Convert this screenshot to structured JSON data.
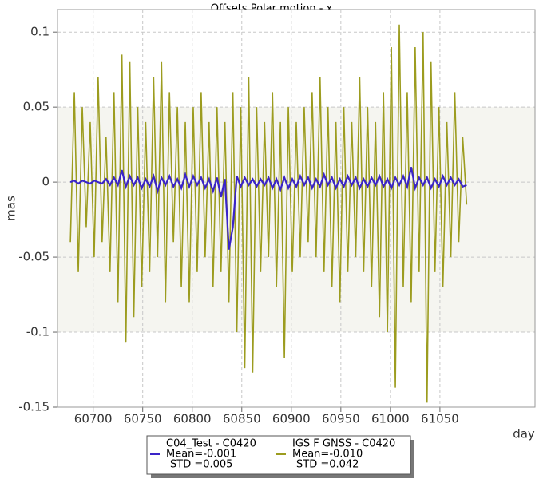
{
  "chart_data": {
    "type": "line",
    "title": "Offsets Polar motion - x",
    "ylabel": "mas",
    "xlabel": "day",
    "xlim": [
      60664,
      61146
    ],
    "xticks": [
      60700,
      60750,
      60800,
      60850,
      60900,
      60950,
      61000,
      61050
    ],
    "ylim": [
      -0.15,
      0.115
    ],
    "yticks": [
      0.1,
      0.05,
      0,
      -0.05,
      -0.1,
      -0.15
    ],
    "band": [
      -0.1,
      0.05
    ],
    "grid": true,
    "x": [
      60677,
      60681,
      60685,
      60689,
      60693,
      60697,
      60701,
      60705,
      60709,
      60713,
      60717,
      60721,
      60725,
      60729,
      60733,
      60737,
      60741,
      60745,
      60749,
      60753,
      60757,
      60761,
      60765,
      60769,
      60773,
      60777,
      60781,
      60785,
      60789,
      60793,
      60797,
      60801,
      60805,
      60809,
      60813,
      60817,
      60821,
      60825,
      60829,
      60833,
      60837,
      60841,
      60845,
      60849,
      60853,
      60857,
      60861,
      60865,
      60869,
      60873,
      60877,
      60881,
      60885,
      60889,
      60893,
      60897,
      60901,
      60905,
      60909,
      60913,
      60917,
      60921,
      60925,
      60929,
      60933,
      60937,
      60941,
      60945,
      60949,
      60953,
      60957,
      60961,
      60965,
      60969,
      60973,
      60977,
      60981,
      60985,
      60989,
      60993,
      60997,
      61001,
      61005,
      61009,
      61013,
      61017,
      61021,
      61025,
      61029,
      61033,
      61037,
      61041,
      61045,
      61049,
      61053,
      61057,
      61061,
      61065,
      61069,
      61073,
      61077
    ],
    "series": [
      {
        "name": "C04_Test - C0420",
        "mean_label": "Mean=-0.001",
        "std_label": "STD =0.005",
        "color": "#3a24c8",
        "values": [
          0,
          0.001,
          -0.001,
          0.001,
          0,
          -0.001,
          0.001,
          0,
          -0.001,
          0.002,
          -0.002,
          0.003,
          -0.002,
          0.008,
          -0.003,
          0.004,
          -0.002,
          0.003,
          -0.004,
          0.002,
          -0.003,
          0.004,
          -0.006,
          0.003,
          -0.002,
          0.004,
          -0.003,
          0.002,
          -0.004,
          0.005,
          -0.003,
          0.004,
          -0.002,
          0.003,
          -0.004,
          0.002,
          -0.006,
          0.003,
          -0.01,
          0.002,
          -0.045,
          -0.03,
          0.004,
          -0.003,
          0.003,
          -0.002,
          0.002,
          -0.003,
          0.002,
          -0.002,
          0.003,
          -0.004,
          0.002,
          -0.005,
          0.003,
          -0.004,
          0.002,
          -0.003,
          0.004,
          -0.002,
          0.003,
          -0.004,
          0.002,
          -0.003,
          0.005,
          -0.002,
          0.003,
          -0.004,
          0.002,
          -0.003,
          0.004,
          -0.002,
          0.003,
          -0.004,
          0.002,
          -0.003,
          0.003,
          -0.002,
          0.004,
          -0.003,
          0.002,
          -0.004,
          0.003,
          -0.002,
          0.004,
          -0.003,
          0.01,
          -0.004,
          0.003,
          -0.002,
          0.003,
          -0.004,
          0.002,
          -0.003,
          0.004,
          -0.002,
          0.003,
          -0.002,
          0.002,
          -0.003,
          -0.002
        ]
      },
      {
        "name": "IGS F GNSS - C0420",
        "mean_label": "Mean=-0.010",
        "std_label": "STD =0.042",
        "color": "#9c9c1f",
        "values": [
          -0.04,
          0.06,
          -0.06,
          0.05,
          -0.03,
          0.04,
          -0.05,
          0.07,
          -0.04,
          0.03,
          -0.06,
          0.06,
          -0.08,
          0.085,
          -0.107,
          0.08,
          -0.09,
          0.05,
          -0.07,
          0.04,
          -0.06,
          0.07,
          -0.05,
          0.08,
          -0.08,
          0.06,
          -0.04,
          0.05,
          -0.07,
          0.04,
          -0.08,
          0.05,
          -0.06,
          0.06,
          -0.05,
          0.04,
          -0.07,
          0.05,
          -0.06,
          0.04,
          -0.08,
          0.06,
          -0.1,
          0.05,
          -0.124,
          0.07,
          -0.127,
          0.05,
          -0.06,
          0.04,
          -0.05,
          0.06,
          -0.07,
          0.04,
          -0.117,
          0.05,
          -0.06,
          0.04,
          -0.05,
          0.05,
          -0.04,
          0.06,
          -0.05,
          0.07,
          -0.06,
          0.05,
          -0.07,
          0.04,
          -0.08,
          0.05,
          -0.06,
          0.04,
          -0.05,
          0.07,
          -0.06,
          0.05,
          -0.07,
          0.04,
          -0.09,
          0.06,
          -0.1,
          0.09,
          -0.137,
          0.105,
          -0.07,
          0.06,
          -0.08,
          0.09,
          -0.06,
          0.1,
          -0.147,
          0.08,
          -0.06,
          0.05,
          -0.07,
          0.04,
          -0.05,
          0.06,
          -0.04,
          0.03,
          -0.015
        ]
      }
    ]
  }
}
